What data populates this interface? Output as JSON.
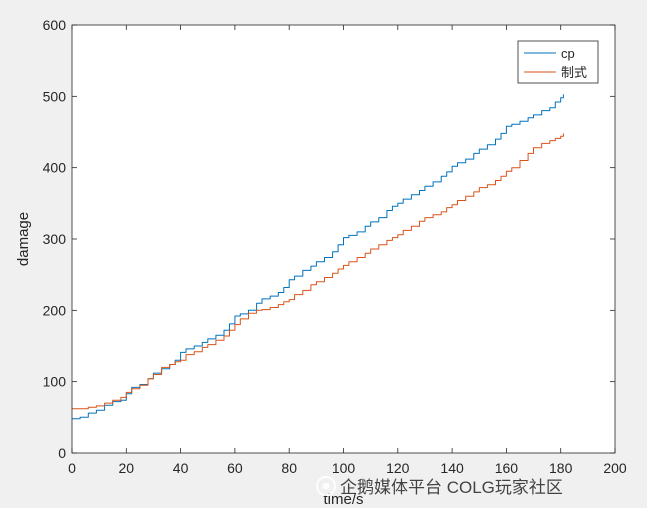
{
  "chart_data": {
    "type": "line",
    "title": "",
    "xlabel": "time/s",
    "ylabel": "damage",
    "xlim": [
      0,
      200
    ],
    "ylim": [
      0,
      600
    ],
    "xticks": [
      0,
      20,
      40,
      60,
      80,
      100,
      120,
      140,
      160,
      180,
      200
    ],
    "yticks": [
      0,
      100,
      200,
      300,
      400,
      500,
      600
    ],
    "grid": false,
    "legend_position": "top-right",
    "series": [
      {
        "name": "cp",
        "color": "#0072bd",
        "x": [
          0,
          3,
          6,
          9,
          12,
          15,
          18,
          20,
          22,
          25,
          28,
          30,
          33,
          36,
          38,
          40,
          42,
          45,
          48,
          50,
          53,
          56,
          58,
          60,
          62,
          65,
          68,
          70,
          73,
          76,
          78,
          80,
          82,
          85,
          88,
          90,
          93,
          96,
          98,
          100,
          102,
          105,
          108,
          110,
          113,
          116,
          118,
          120,
          122,
          125,
          128,
          130,
          133,
          136,
          138,
          140,
          142,
          145,
          148,
          150,
          153,
          156,
          158,
          160,
          162,
          165,
          168,
          170,
          173,
          176,
          178,
          180,
          181
        ],
        "y": [
          48,
          50,
          56,
          60,
          67,
          72,
          74,
          83,
          92,
          96,
          104,
          112,
          118,
          124,
          130,
          141,
          146,
          150,
          155,
          160,
          165,
          172,
          181,
          192,
          195,
          200,
          210,
          216,
          220,
          225,
          232,
          243,
          248,
          256,
          262,
          268,
          274,
          282,
          292,
          302,
          305,
          310,
          318,
          324,
          330,
          340,
          346,
          350,
          356,
          362,
          368,
          374,
          380,
          388,
          394,
          402,
          407,
          412,
          420,
          426,
          432,
          440,
          448,
          458,
          461,
          465,
          470,
          474,
          480,
          484,
          492,
          498,
          503
        ]
      },
      {
        "name": "制式",
        "color": "#d95319",
        "x": [
          0,
          3,
          6,
          9,
          12,
          15,
          18,
          20,
          22,
          25,
          28,
          30,
          33,
          36,
          38,
          40,
          42,
          45,
          48,
          50,
          53,
          56,
          58,
          60,
          62,
          65,
          68,
          70,
          73,
          76,
          78,
          80,
          82,
          85,
          88,
          90,
          93,
          96,
          98,
          100,
          102,
          105,
          108,
          110,
          113,
          116,
          118,
          120,
          122,
          125,
          128,
          130,
          133,
          136,
          138,
          140,
          142,
          145,
          148,
          150,
          153,
          156,
          158,
          160,
          162,
          165,
          168,
          170,
          173,
          176,
          178,
          180,
          181
        ],
        "y": [
          62,
          62,
          64,
          66,
          70,
          74,
          78,
          85,
          90,
          95,
          104,
          110,
          120,
          124,
          128,
          130,
          138,
          142,
          148,
          152,
          158,
          164,
          172,
          180,
          188,
          196,
          200,
          201,
          204,
          208,
          212,
          215,
          222,
          228,
          236,
          240,
          246,
          252,
          258,
          263,
          268,
          274,
          280,
          286,
          292,
          298,
          302,
          306,
          312,
          318,
          325,
          330,
          334,
          338,
          344,
          348,
          354,
          360,
          366,
          372,
          376,
          382,
          388,
          395,
          400,
          410,
          420,
          428,
          434,
          438,
          441,
          444,
          448
        ]
      }
    ]
  },
  "watermark": {
    "text": "企鹅媒体平台 COLG玩家社区"
  }
}
